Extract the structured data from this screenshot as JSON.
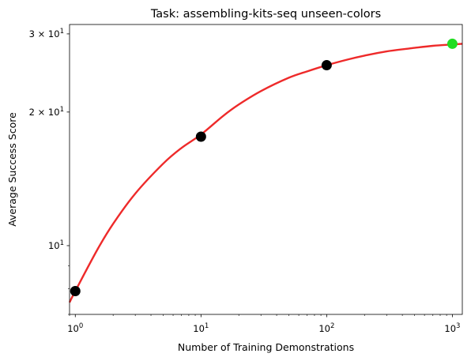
{
  "chart_data": {
    "type": "scatter",
    "title": "Task: assembling-kits-seq unseen-colors",
    "xlabel": "Number of Training Demonstrations",
    "ylabel": "Average Success Score",
    "xscale": "log",
    "yscale": "log",
    "xlim": [
      0.9,
      1200
    ],
    "ylim": [
      7.0,
      31.5
    ],
    "x_ticks": [
      {
        "value": 1,
        "base": "10",
        "exp": "0"
      },
      {
        "value": 10,
        "base": "10",
        "exp": "1"
      },
      {
        "value": 100,
        "base": "10",
        "exp": "2"
      },
      {
        "value": 1000,
        "base": "10",
        "exp": "3"
      }
    ],
    "y_ticks": [
      {
        "value": 10,
        "base": "10",
        "exp": "1"
      },
      {
        "value": 20,
        "mant": "2",
        "base": "10",
        "exp": "1"
      },
      {
        "value": 30,
        "mant": "3",
        "base": "10",
        "exp": "1"
      }
    ],
    "points": [
      {
        "x": 1,
        "y": 7.9,
        "color": "#000000"
      },
      {
        "x": 10,
        "y": 17.6,
        "color": "#000000"
      },
      {
        "x": 100,
        "y": 25.5,
        "color": "#000000"
      },
      {
        "x": 1000,
        "y": 28.5,
        "color": "#22dd22"
      }
    ],
    "fit_curve": {
      "color": "#ee2a2a",
      "x": [
        0.9,
        1,
        1.5,
        2,
        3,
        5,
        7,
        10,
        15,
        20,
        30,
        50,
        70,
        100,
        150,
        200,
        300,
        500,
        700,
        1000,
        1200
      ],
      "y": [
        7.45,
        7.9,
        9.8,
        11.2,
        13.1,
        15.3,
        16.6,
        17.8,
        19.6,
        20.8,
        22.3,
        23.9,
        24.7,
        25.5,
        26.3,
        26.8,
        27.4,
        27.9,
        28.2,
        28.4,
        28.5
      ]
    },
    "grid": false,
    "legend": "none"
  }
}
